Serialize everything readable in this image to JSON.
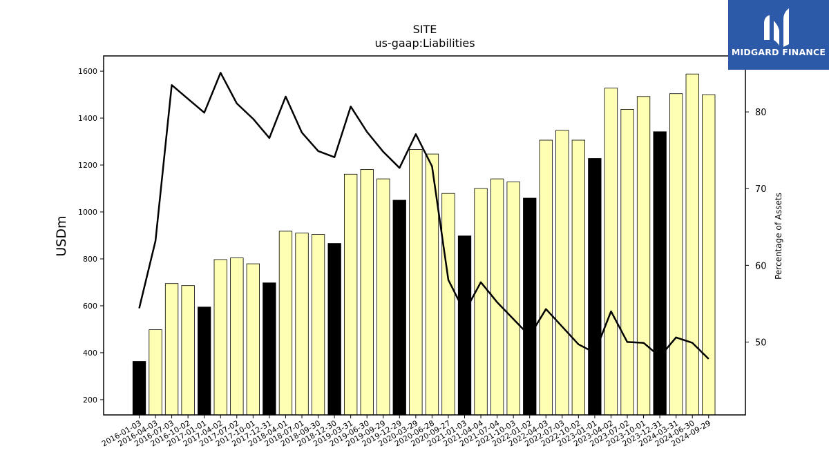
{
  "logo": {
    "text": "MIDGARD FINANCE"
  },
  "chart_data": {
    "type": "bar",
    "title": "SITE",
    "subtitle": "us-gaap:Liabilities",
    "ylabel": "USDm",
    "y2label": "Percentage of Assets",
    "ylim": [
      135,
      1665
    ],
    "y2lim": [
      40.5,
      87.3
    ],
    "yticks": [
      200,
      400,
      600,
      800,
      1000,
      1200,
      1400,
      1600
    ],
    "y2ticks": [
      50,
      60,
      70,
      80
    ],
    "grid": false,
    "colors": {
      "bar": "#ffffb3",
      "bar_q4": "#000000",
      "line": "#000000"
    },
    "categories": [
      "2016-01-03",
      "2016-04-03",
      "2016-07-03",
      "2016-10-02",
      "2017-01-01",
      "2017-04-02",
      "2017-07-02",
      "2017-10-01",
      "2017-12-31",
      "2018-04-01",
      "2018-07-01",
      "2018-09-30",
      "2018-12-30",
      "2019-03-31",
      "2019-06-30",
      "2019-09-29",
      "2019-12-29",
      "2020-03-29",
      "2020-06-28",
      "2020-09-27",
      "2021-01-03",
      "2021-04-04",
      "2021-07-04",
      "2021-10-03",
      "2022-01-02",
      "2022-04-03",
      "2022-07-03",
      "2022-10-02",
      "2023-01-01",
      "2023-04-02",
      "2023-07-02",
      "2023-10-01",
      "2023-12-31",
      "2024-03-31",
      "2024-06-30",
      "2024-09-29"
    ],
    "series": [
      {
        "type": "bar",
        "values": [
          363,
          498,
          695,
          686,
          595,
          797,
          804,
          779,
          698,
          918,
          910,
          904,
          866,
          1161,
          1181,
          1141,
          1050,
          1266,
          1247,
          1079,
          898,
          1100,
          1141,
          1128,
          1059,
          1306,
          1348,
          1306,
          1228,
          1528,
          1437,
          1492,
          1342,
          1504,
          1588,
          1500
        ],
        "highlight": [
          0,
          4,
          8,
          12,
          16,
          20,
          24,
          28,
          32
        ]
      },
      {
        "type": "line",
        "axis": "right",
        "values": [
          54.4,
          63.2,
          83.5,
          81.7,
          79.9,
          85.1,
          81.1,
          79.1,
          76.6,
          82.0,
          77.3,
          74.9,
          74.1,
          80.7,
          77.4,
          74.8,
          72.7,
          77.1,
          72.9,
          58.1,
          53.9,
          57.8,
          55.2,
          53.0,
          50.8,
          54.3,
          52.0,
          49.7,
          48.6,
          54.0,
          50.0,
          49.9,
          48.1,
          50.6,
          49.9,
          47.8
        ]
      }
    ]
  }
}
